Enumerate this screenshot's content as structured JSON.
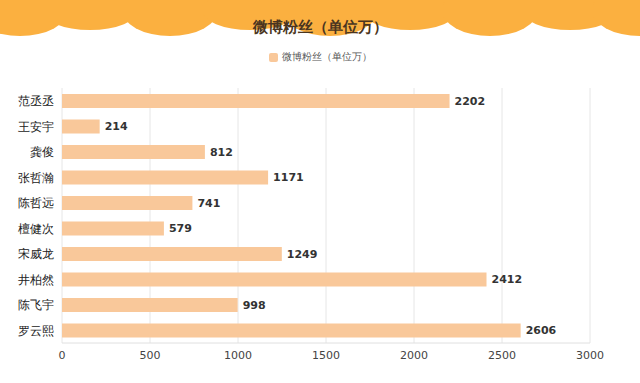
{
  "chart_data": {
    "type": "bar",
    "title": "微博粉丝（单位万）",
    "orientation": "horizontal",
    "categories": [
      "范丞丞",
      "王安宇",
      "龚俊",
      "张哲瀚",
      "陈哲远",
      "檀健次",
      "宋威龙",
      "井柏然",
      "陈飞宇",
      "罗云熙"
    ],
    "series": [
      {
        "name": "微博粉丝（单位万）",
        "color": "#f9c89a",
        "values": [
          2202,
          214,
          812,
          1171,
          741,
          579,
          1249,
          2412,
          998,
          2606
        ]
      }
    ],
    "xlim": [
      0,
      3000
    ],
    "xticks": [
      0,
      500,
      1000,
      1500,
      2000,
      2500,
      3000
    ],
    "grid": true,
    "legend": "top",
    "data_labels": true
  }
}
